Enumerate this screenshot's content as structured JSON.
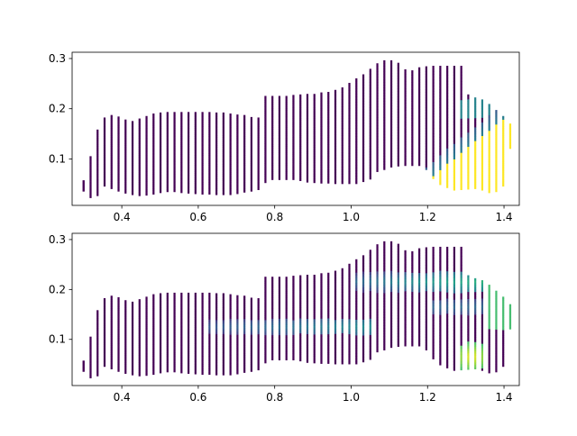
{
  "chart_data": [
    {
      "type": "scatter",
      "subtype": "vertical-line-segments colored by viridis colormap",
      "title": "",
      "xlabel": "",
      "ylabel": "",
      "xlim": [
        0.27,
        1.44
      ],
      "ylim": [
        0.0075,
        0.3125
      ],
      "xticks": [
        0.4,
        0.6,
        0.8,
        1.0,
        1.2,
        1.4
      ],
      "yticks": [
        0.1,
        0.2,
        0.3
      ],
      "xtick_labels": [
        "0.4",
        "0.6",
        "0.8",
        "1.0",
        "1.2",
        "1.4"
      ],
      "ytick_labels": [
        "0.1",
        "0.2",
        "0.3"
      ],
      "grid": false,
      "colormap": "viridis",
      "color_rule": "yellow wedge: points with x > 1.19 and y < 0.62*(x-1.19)+0.05",
      "segment_x_start": 0.3,
      "segment_x_step": 0.0183,
      "segment_count": 61,
      "y_low": [
        0.035,
        0.022,
        0.026,
        0.045,
        0.04,
        0.035,
        0.031,
        0.028,
        0.026,
        0.027,
        0.029,
        0.032,
        0.034,
        0.034,
        0.032,
        0.031,
        0.03,
        0.029,
        0.029,
        0.028,
        0.028,
        0.028,
        0.03,
        0.033,
        0.035,
        0.038,
        0.052,
        0.058,
        0.058,
        0.058,
        0.058,
        0.056,
        0.053,
        0.052,
        0.051,
        0.051,
        0.05,
        0.05,
        0.05,
        0.05,
        0.054,
        0.059,
        0.074,
        0.078,
        0.083,
        0.085,
        0.086,
        0.086,
        0.086,
        0.078,
        0.06,
        0.048,
        0.042,
        0.037,
        0.038,
        0.039,
        0.04,
        0.037,
        0.032,
        0.034,
        0.045
      ],
      "y_high": [
        0.057,
        0.105,
        0.158,
        0.182,
        0.187,
        0.184,
        0.178,
        0.175,
        0.18,
        0.185,
        0.19,
        0.192,
        0.193,
        0.193,
        0.193,
        0.193,
        0.193,
        0.193,
        0.193,
        0.192,
        0.192,
        0.19,
        0.188,
        0.187,
        0.183,
        0.182,
        0.225,
        0.225,
        0.225,
        0.225,
        0.227,
        0.228,
        0.229,
        0.229,
        0.232,
        0.233,
        0.237,
        0.242,
        0.251,
        0.26,
        0.268,
        0.279,
        0.29,
        0.296,
        0.296,
        0.291,
        0.278,
        0.276,
        0.282,
        0.284,
        0.285,
        0.285,
        0.285,
        0.285,
        0.285,
        0.228,
        0.222,
        0.218,
        0.209,
        0.197,
        0.185
      ],
      "y_low_extra": {
        "61": 0.12
      },
      "y_high_extra": {
        "61": 0.17
      }
    },
    {
      "type": "scatter",
      "subtype": "vertical-line-segments colored by viridis colormap (interpolated field)",
      "title": "",
      "xlabel": "",
      "ylabel": "",
      "xlim": [
        0.27,
        1.44
      ],
      "ylim": [
        0.0075,
        0.3125
      ],
      "xticks": [
        0.4,
        0.6,
        0.8,
        1.0,
        1.2,
        1.4
      ],
      "yticks": [
        0.1,
        0.2,
        0.3
      ],
      "xtick_labels": [
        "0.4",
        "0.6",
        "0.8",
        "1.0",
        "1.2",
        "1.4"
      ],
      "ytick_labels": [
        "0.1",
        "0.2",
        "0.3"
      ],
      "grid": false,
      "colormap": "viridis",
      "color_rule": "same segments; mostly low values with faint teal band near y=0.125 for x 0.62-1.05, teal/green highlights near y=0.20-0.23 for x 1.0-1.4, yellow patch near x 1.28-1.35, y 0.04-0.09",
      "same_segments_as": 0
    }
  ]
}
